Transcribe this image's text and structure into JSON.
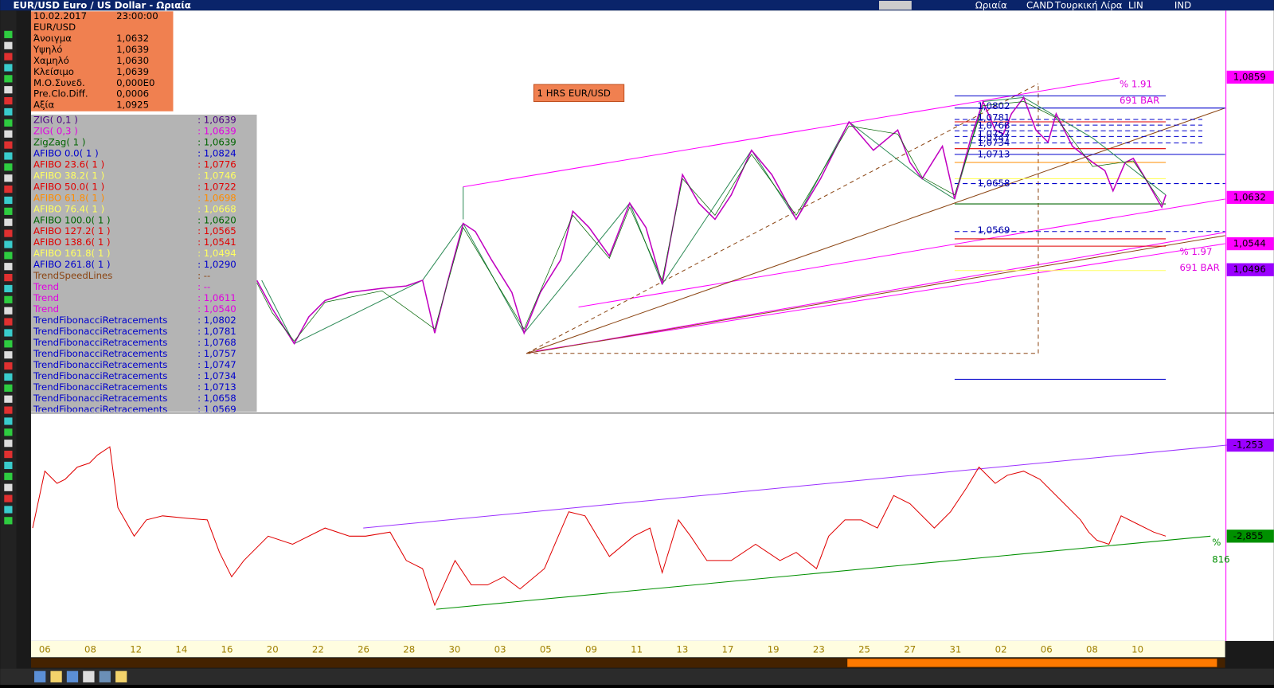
{
  "title_bar": {
    "title": "EUR/USD Euro / US Dollar - Ωριαία",
    "menu": [
      "Ωριαία",
      "CAND",
      "Τουρκική Λίρα",
      "LIN",
      "IND"
    ]
  },
  "info_box": {
    "date": "10.02.2017",
    "time": "23:00:00",
    "symbol": "EUR/USD",
    "rows": [
      [
        "Άνοιγμα",
        "1,0632"
      ],
      [
        "Υψηλό",
        "1,0639"
      ],
      [
        "Χαμηλό",
        "1,0630"
      ],
      [
        "Κλείσιμο",
        "1,0639"
      ],
      [
        "Μ.Ο.Συνεδ.",
        "0,000E0"
      ],
      [
        "Pre.Clo.Diff.",
        "0,0006"
      ],
      [
        "Αξία",
        "1,0925"
      ]
    ]
  },
  "chart_label": "1 HRS EUR/USD",
  "indicators": [
    {
      "name": "ZIG( 0,1 )",
      "value": ": 1,0639",
      "color": "#4b0082"
    },
    {
      "name": "ZIG( 0,3 )",
      "value": ": 1,0639",
      "color": "#e000e0"
    },
    {
      "name": "ZigZag( 1 )",
      "value": ": 1,0639",
      "color": "#006400"
    },
    {
      "name": "AFIBO 0.0( 1 )",
      "value": ": 1,0824",
      "color": "#0000cc"
    },
    {
      "name": "AFIBO 23.6( 1 )",
      "value": ": 1,0776",
      "color": "#e00000"
    },
    {
      "name": "AFIBO 38.2( 1 )",
      "value": ": 1,0746",
      "color": "#ffff60"
    },
    {
      "name": "AFIBO 50.0( 1 )",
      "value": ": 1,0722",
      "color": "#e00000"
    },
    {
      "name": "AFIBO 61.8( 1 )",
      "value": ": 1,0698",
      "color": "#ff8c00"
    },
    {
      "name": "AFIBO 76.4( 1 )",
      "value": ": 1,0668",
      "color": "#ffff60"
    },
    {
      "name": "AFIBO 100.0( 1 )",
      "value": ": 1,0620",
      "color": "#006400"
    },
    {
      "name": "AFIBO 127.2( 1 )",
      "value": ": 1,0565",
      "color": "#e00000"
    },
    {
      "name": "AFIBO 138.6( 1 )",
      "value": ": 1,0541",
      "color": "#e00000"
    },
    {
      "name": "AFIBO 161.8( 1 )",
      "value": ": 1,0494",
      "color": "#ffff60"
    },
    {
      "name": "AFIBO 261.8( 1 )",
      "value": ": 1,0290",
      "color": "#0000cc"
    },
    {
      "name": "TrendSpeedLines",
      "value": ": --",
      "color": "#8b4513"
    },
    {
      "name": "Trend",
      "value": ": --",
      "color": "#e000e0"
    },
    {
      "name": "Trend",
      "value": ": 1,0611",
      "color": "#e000e0"
    },
    {
      "name": "Trend",
      "value": ": 1,0540",
      "color": "#e000e0"
    },
    {
      "name": "TrendFibonacciRetracements",
      "value": ": 1,0802",
      "color": "#0000cc"
    },
    {
      "name": "TrendFibonacciRetracements",
      "value": ": 1,0781",
      "color": "#0000cc"
    },
    {
      "name": "TrendFibonacciRetracements",
      "value": ": 1,0768",
      "color": "#0000cc"
    },
    {
      "name": "TrendFibonacciRetracements",
      "value": ": 1,0757",
      "color": "#0000cc"
    },
    {
      "name": "TrendFibonacciRetracements",
      "value": ": 1,0747",
      "color": "#0000cc"
    },
    {
      "name": "TrendFibonacciRetracements",
      "value": ": 1,0734",
      "color": "#0000cc"
    },
    {
      "name": "TrendFibonacciRetracements",
      "value": ": 1,0713",
      "color": "#0000cc"
    },
    {
      "name": "TrendFibonacciRetracements",
      "value": ": 1,0658",
      "color": "#0000cc"
    },
    {
      "name": "TrendFibonacciRetracements",
      "value": ": 1,0569",
      "color": "#0000cc"
    }
  ],
  "fib_labels": [
    "1,0802",
    "1,0781",
    "1,0768",
    "1,0757",
    "1,0747",
    "1,0734",
    "1,0713",
    "1,0658",
    "1,0569"
  ],
  "channel_labels": [
    "% 1.91",
    "691 BAR",
    "% 1.97",
    "691 BAR"
  ],
  "price_axis": [
    {
      "label": "1,0859",
      "color": "#ff00ff"
    },
    {
      "label": "1,0632",
      "color": "#ff00ff"
    },
    {
      "label": "1,0544",
      "color": "#ff00ff"
    },
    {
      "label": "1,0496",
      "color": "#9b00ff"
    }
  ],
  "oscillator_axis": [
    {
      "label": "-1,253",
      "color": "#9b00ff"
    },
    {
      "label": "-2,855",
      "color": "#009000"
    }
  ],
  "oscillator_labels": [
    "%",
    "816"
  ],
  "x_axis": [
    "06",
    "08",
    "12",
    "14",
    "16",
    "20",
    "22",
    "26",
    "28",
    "30",
    "03",
    "05",
    "09",
    "11",
    "13",
    "17",
    "19",
    "23",
    "25",
    "27",
    "31",
    "02",
    "06",
    "08",
    "10"
  ]
}
